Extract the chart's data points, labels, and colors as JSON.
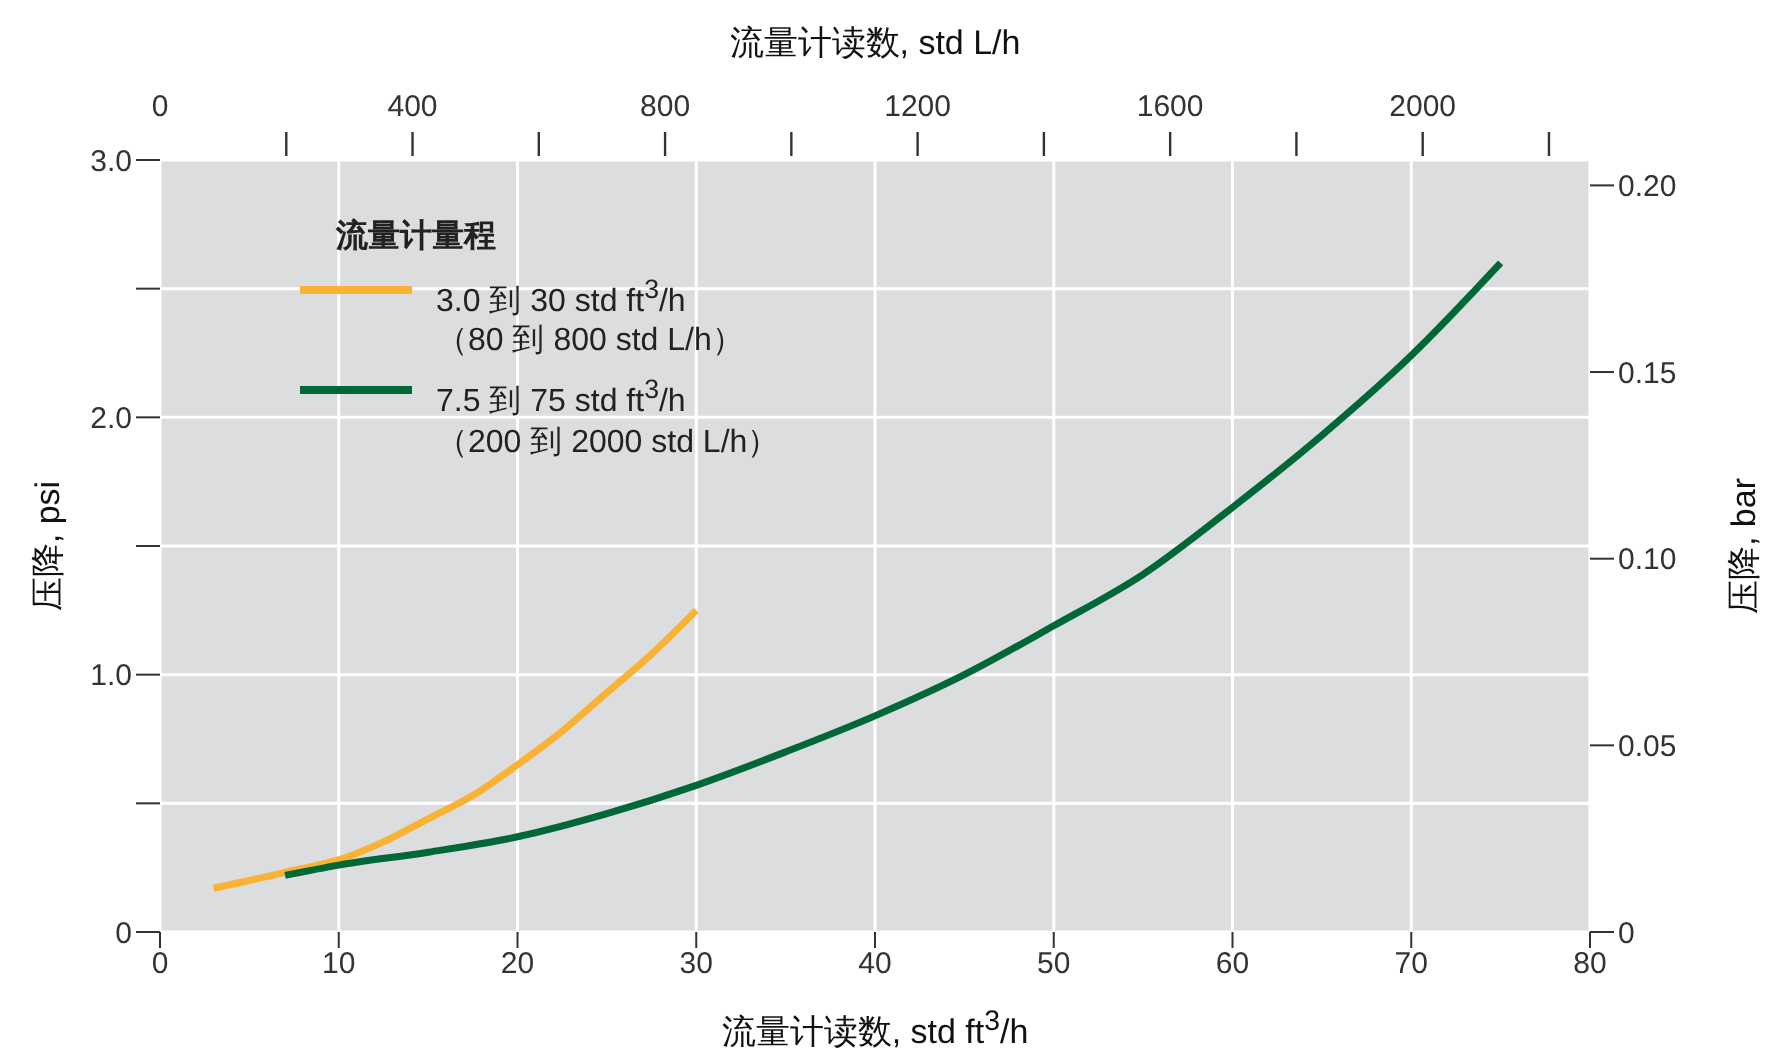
{
  "chart_data": {
    "type": "line",
    "xlabel": "流量计读数, std ft$^{3}$/h",
    "x2label": "流量计读数, std L/h",
    "ylabel": "压降, psi",
    "y2label": "压降, bar",
    "legend_title": "流量计量程",
    "legend": "top left",
    "grid": true,
    "series": [
      {
        "name": "3.0 到 30 std ft$^{3}$/h\n（80 到 800 std L/h）",
        "color": "#f9b234",
        "x": [
          3,
          5,
          7.5,
          10,
          12.5,
          15,
          17.5,
          20,
          22.5,
          25,
          27.5,
          30
        ],
        "values": [
          0.17,
          0.2,
          0.24,
          0.28,
          0.35,
          0.44,
          0.53,
          0.65,
          0.78,
          0.93,
          1.08,
          1.25
        ]
      },
      {
        "name": "7.5 到 75 std ft$^{3}$/h\n（200 到 2000 std L/h）",
        "color": "#006837",
        "x": [
          7,
          10,
          15,
          20,
          25,
          30,
          35,
          40,
          45,
          50,
          55,
          60,
          65,
          70,
          75
        ],
        "values": [
          0.22,
          0.26,
          0.31,
          0.37,
          0.46,
          0.57,
          0.7,
          0.84,
          1.0,
          1.19,
          1.39,
          1.65,
          1.93,
          2.24,
          2.6
        ]
      }
    ],
    "xlim": [
      0,
      80
    ],
    "xticks": [
      0,
      10,
      20,
      30,
      40,
      50,
      60,
      70,
      80
    ],
    "x2lim": [
      0,
      2265
    ],
    "x2ticks": [
      0,
      {
        "value": 200,
        "label": null
      },
      400,
      {
        "value": 600,
        "label": null
      },
      800,
      {
        "value": 1000,
        "label": null
      },
      1200,
      {
        "value": 1400,
        "label": null
      },
      1600,
      {
        "value": 1800,
        "label": null
      },
      2000,
      {
        "value": 2200,
        "label": null
      }
    ],
    "ylim": [
      0,
      3.0
    ],
    "yticks": [
      0,
      {
        "value": 0.5,
        "label": null
      },
      {
        "value": 1.0,
        "label": "1.0"
      },
      {
        "value": 1.5,
        "label": null
      },
      {
        "value": 2.0,
        "label": "2.0"
      },
      {
        "value": 2.5,
        "label": null
      },
      {
        "value": 3.0,
        "label": "3.0"
      }
    ],
    "y2lim": [
      0,
      0.2068
    ],
    "y2ticks": [
      0,
      0.05,
      {
        "value": 0.1,
        "label": "0.10"
      },
      0.15,
      {
        "value": 0.2,
        "label": "0.20"
      }
    ]
  }
}
